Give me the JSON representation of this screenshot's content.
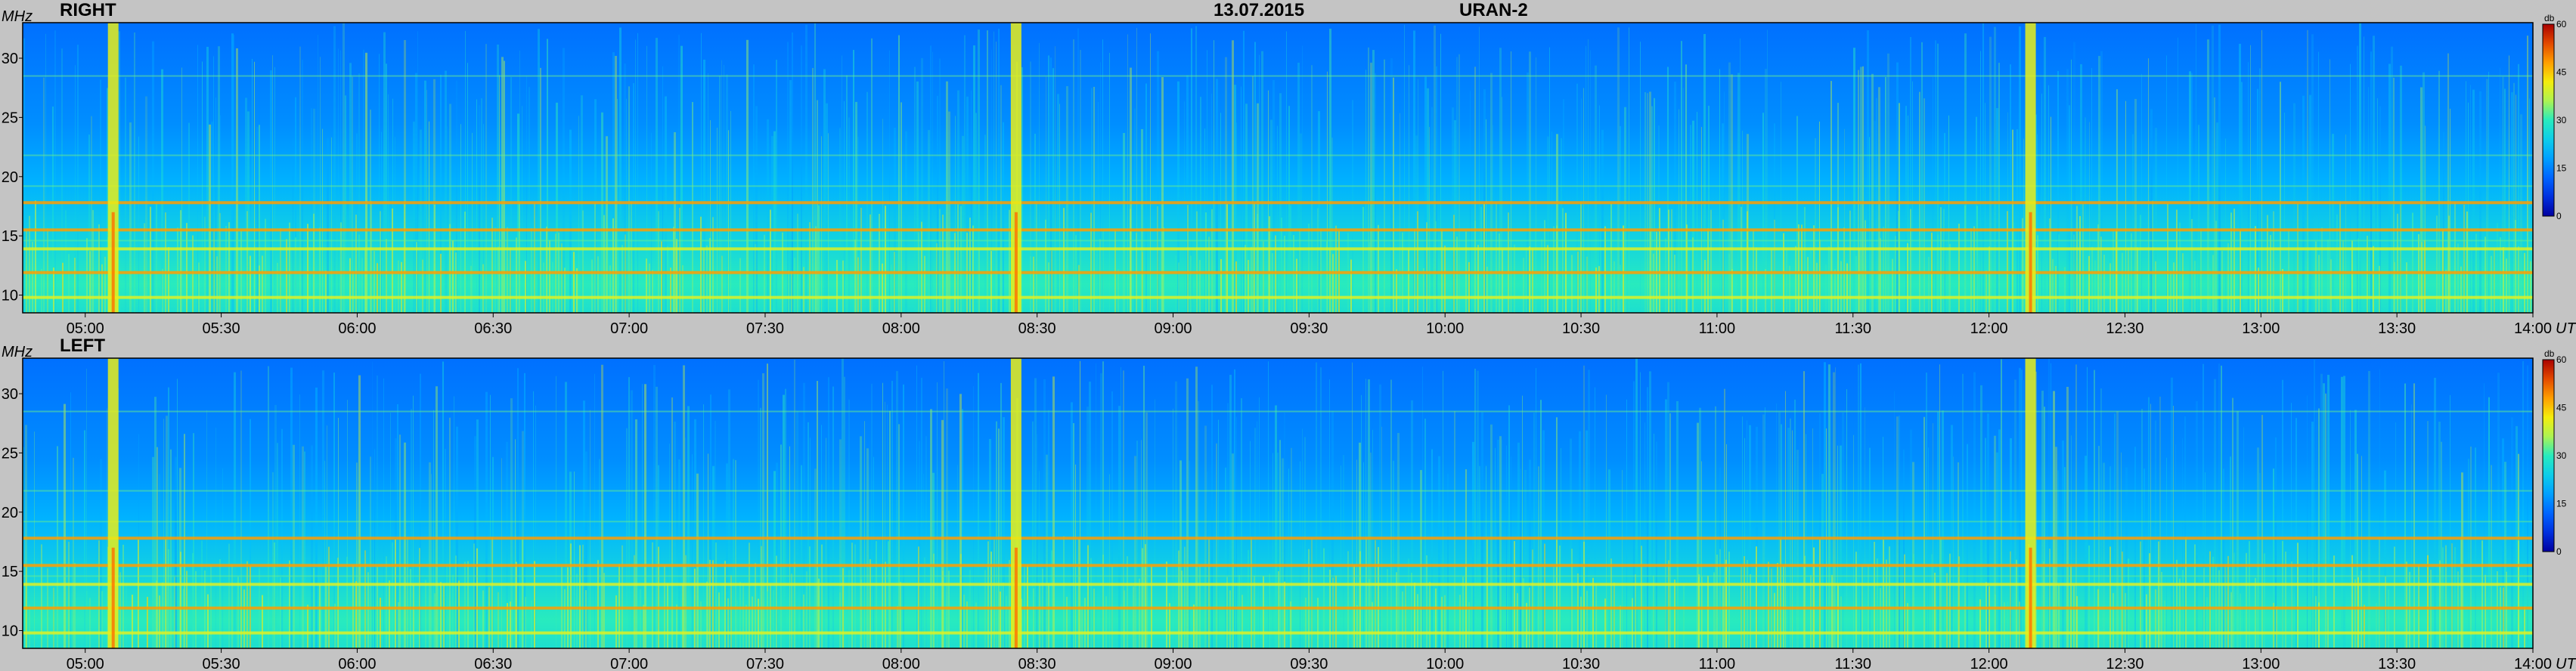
{
  "header": {
    "date": "13.07.2015",
    "instrument": "URAN-2"
  },
  "chart_data": [
    {
      "type": "heatmap",
      "title": "RIGHT",
      "ylabel": "MHz",
      "xlabel": "UT",
      "x_ticks": [
        "05:00",
        "05:30",
        "06:00",
        "06:30",
        "07:00",
        "07:30",
        "08:00",
        "08:30",
        "09:00",
        "09:30",
        "10:00",
        "10:30",
        "11:00",
        "11:30",
        "12:00",
        "12:30",
        "13:00",
        "13:30",
        "14:00"
      ],
      "x_range_hours": [
        4.77,
        14.0
      ],
      "y_ticks": [
        10,
        15,
        20,
        25,
        30
      ],
      "ylim": [
        8.5,
        33
      ],
      "colorbar": {
        "label": "db",
        "ticks": [
          0,
          15,
          30,
          45,
          60
        ],
        "range": [
          0,
          60
        ]
      },
      "burst_times_hours": [
        5.1,
        8.42,
        12.15
      ],
      "narrowband_lines_mhz": [
        9.8,
        11.9,
        13.9,
        15.5,
        17.8
      ]
    },
    {
      "type": "heatmap",
      "title": "LEFT",
      "ylabel": "MHz",
      "xlabel": "UT",
      "x_ticks": [
        "05:00",
        "05:30",
        "06:00",
        "06:30",
        "07:00",
        "07:30",
        "08:00",
        "08:30",
        "09:00",
        "09:30",
        "10:00",
        "10:30",
        "11:00",
        "11:30",
        "12:00",
        "12:30",
        "13:00",
        "13:30",
        "14:00"
      ],
      "x_range_hours": [
        4.77,
        14.0
      ],
      "y_ticks": [
        10,
        15,
        20,
        25,
        30
      ],
      "ylim": [
        8.5,
        33
      ],
      "colorbar": {
        "label": "db",
        "ticks": [
          0,
          15,
          30,
          45,
          60
        ],
        "range": [
          0,
          60
        ]
      },
      "burst_times_hours": [
        5.1,
        8.42,
        12.15
      ],
      "narrowband_lines_mhz": [
        9.8,
        11.9,
        13.9,
        15.5,
        17.8
      ]
    }
  ]
}
